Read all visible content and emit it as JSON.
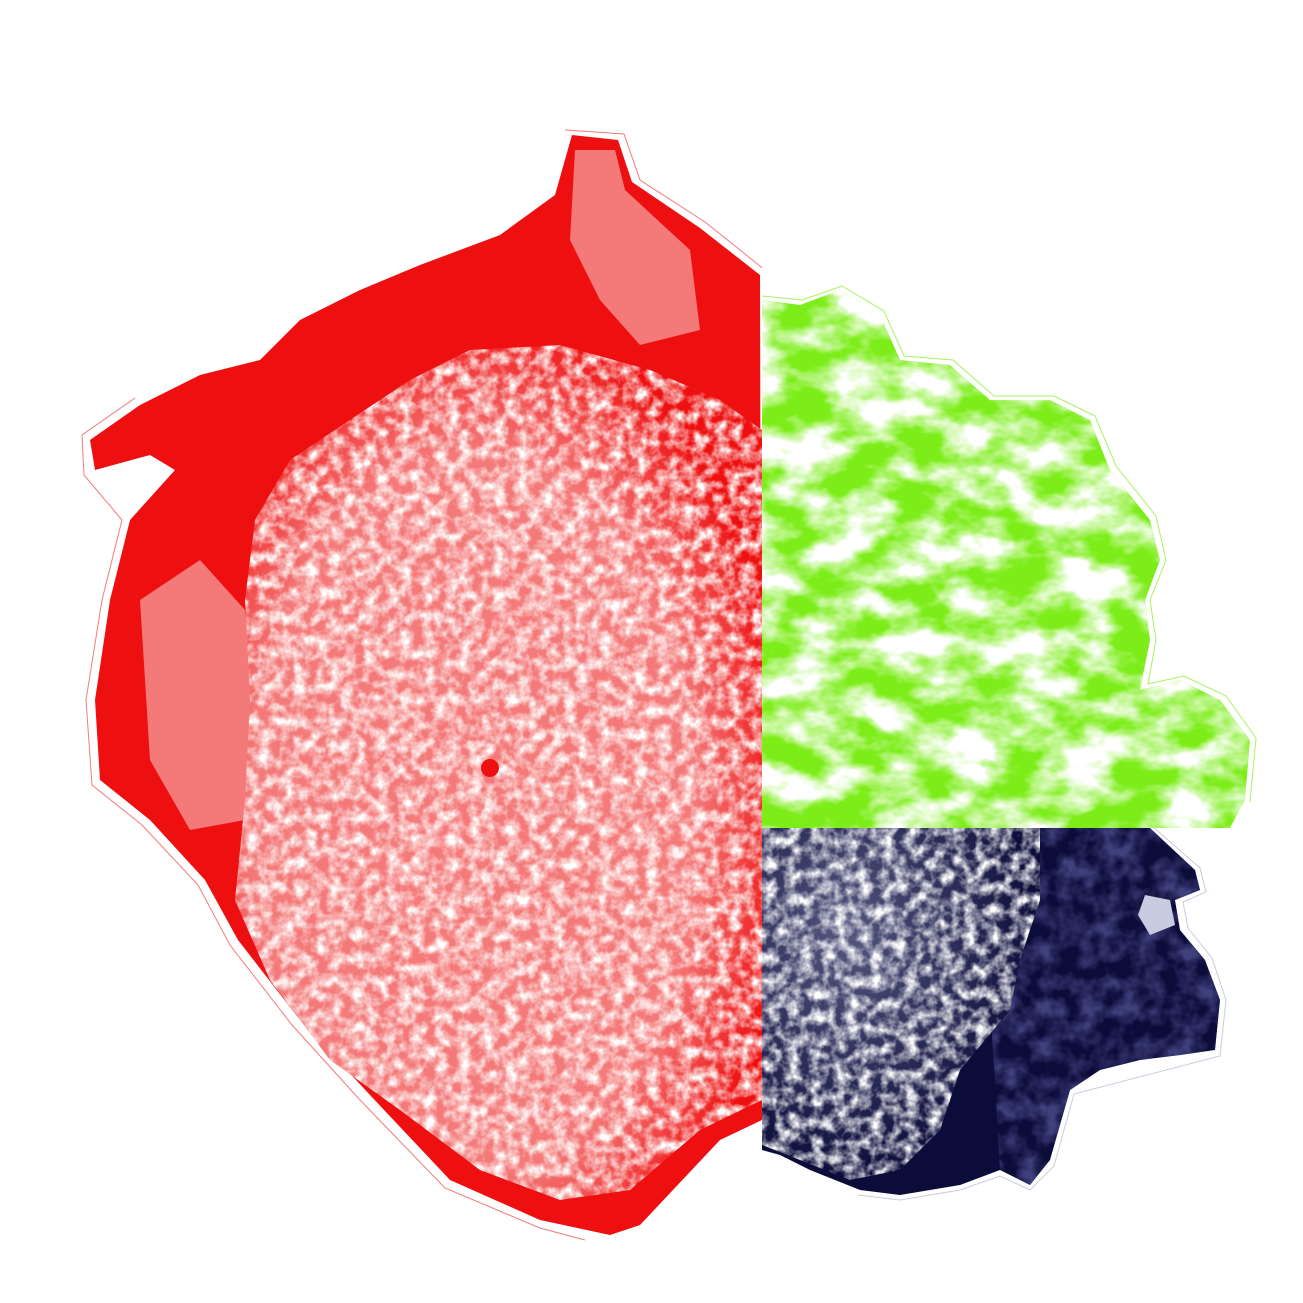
{
  "image": {
    "description_tag": "tri-tone-vegetable-collage",
    "background_color": "#ffffff",
    "panels": [
      {
        "name": "romanesco-left",
        "subject": "romanesco",
        "tint_dark": "#ee1010",
        "tint_mid": "#f47a7a",
        "tint_light": "#fde2e0"
      },
      {
        "name": "lettuce-top-right",
        "subject": "lettuce",
        "tint_dark": "#7ded1a",
        "tint_mid": "#a8f25e",
        "tint_light": "#e8fcd2"
      },
      {
        "name": "romanesco-bottom-right",
        "subject": "romanesco",
        "tint_dark": "#0c0c3a",
        "tint_mid": "#55577f",
        "tint_light": "#c9cbe0"
      }
    ]
  }
}
